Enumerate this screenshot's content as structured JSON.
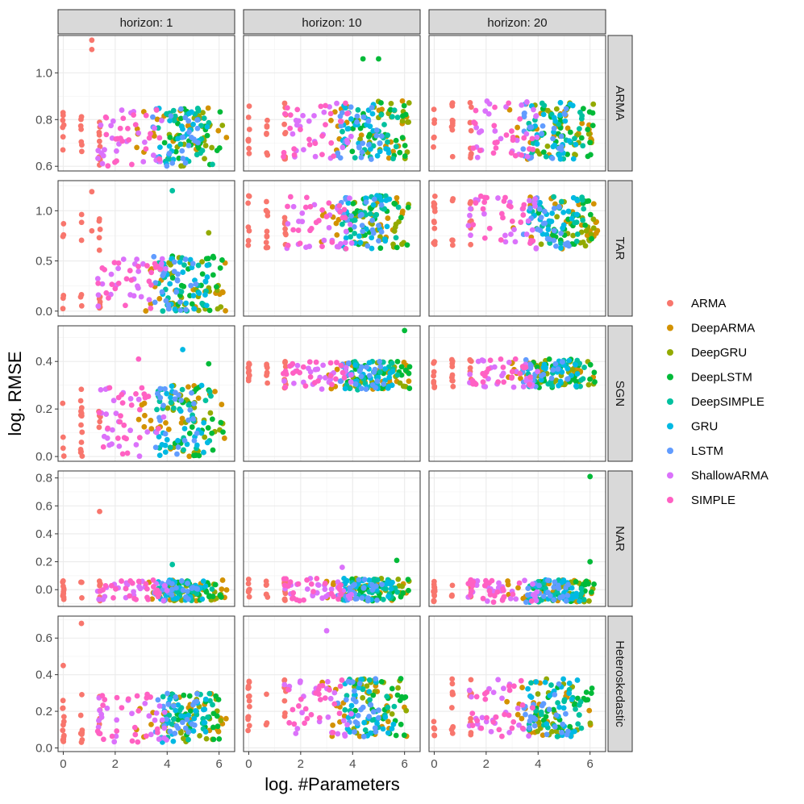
{
  "chart_data": {
    "type": "scatter",
    "xlabel": "log. #Parameters",
    "ylabel": "log. RMSE",
    "xlim": [
      -0.2,
      6.6
    ],
    "x_ticks": [
      0,
      2,
      4,
      6
    ],
    "facet_cols": [
      "horizon: 1",
      "horizon: 10",
      "horizon: 20"
    ],
    "facet_rows": [
      "ARMA",
      "TAR",
      "SGN",
      "NAR",
      "Heteroskedastic"
    ],
    "grid": true,
    "legend_position": "right",
    "series": [
      {
        "name": "ARMA",
        "color": "#F8766D"
      },
      {
        "name": "DeepARMA",
        "color": "#D39200"
      },
      {
        "name": "DeepGRU",
        "color": "#93AA00"
      },
      {
        "name": "DeepLSTM",
        "color": "#00BA38"
      },
      {
        "name": "DeepSIMPLE",
        "color": "#00C19F"
      },
      {
        "name": "GRU",
        "color": "#00B9E3"
      },
      {
        "name": "LSTM",
        "color": "#619CFF"
      },
      {
        "name": "ShallowARMA",
        "color": "#DB72FB"
      },
      {
        "name": "SIMPLE",
        "color": "#FF61C3"
      }
    ],
    "rows": [
      {
        "name": "ARMA",
        "ylim": [
          0.58,
          1.16
        ],
        "y_ticks": [
          0.6,
          0.8,
          1.0
        ],
        "y_tick_labels": [
          "0.6",
          "0.8",
          "1.0"
        ],
        "series_x": [
          [
            0,
            0.7,
            1.4
          ],
          [
            2.8,
            6.3
          ],
          [
            3.8,
            6.2
          ],
          [
            3.8,
            6.2
          ],
          [
            3.6,
            5.8
          ],
          [
            3.6,
            5.6
          ],
          [
            3.4,
            5.2
          ],
          [
            1.3,
            4.0
          ],
          [
            1.3,
            3.8
          ]
        ],
        "panels": [
          {
            "y_range": [
              0.6,
              0.85
            ],
            "n": 24,
            "outliers": [
              [
                1.1,
                1.14,
                0
              ],
              [
                1.1,
                1.1,
                0
              ]
            ]
          },
          {
            "y_range": [
              0.63,
              0.88
            ],
            "n": 24,
            "outliers": [
              [
                4.4,
                1.06,
                3
              ],
              [
                5.0,
                1.06,
                3
              ]
            ]
          },
          {
            "y_range": [
              0.63,
              0.88
            ],
            "n": 24,
            "outliers": []
          }
        ]
      },
      {
        "name": "TAR",
        "ylim": [
          -0.05,
          1.3
        ],
        "y_ticks": [
          0.0,
          0.5,
          1.0
        ],
        "y_tick_labels": [
          "0.0",
          "0.5",
          "1.0"
        ],
        "series_x": [
          [
            0,
            0.7,
            1.4
          ],
          [
            2.8,
            6.3
          ],
          [
            3.8,
            6.2
          ],
          [
            3.8,
            6.2
          ],
          [
            3.6,
            5.8
          ],
          [
            3.6,
            5.6
          ],
          [
            3.4,
            5.2
          ],
          [
            1.3,
            4.0
          ],
          [
            1.3,
            3.8
          ]
        ],
        "panels": [
          {
            "y_range": [
              0.0,
              0.55
            ],
            "n": 24,
            "outliers": [
              [
                1.1,
                1.19,
                0
              ],
              [
                1.1,
                0.8,
                0
              ],
              [
                4.2,
                1.2,
                4
              ],
              [
                5.6,
                0.78,
                2
              ]
            ]
          },
          {
            "y_range": [
              0.62,
              1.15
            ],
            "n": 24,
            "outliers": []
          },
          {
            "y_range": [
              0.62,
              1.15
            ],
            "n": 24,
            "outliers": []
          }
        ]
      },
      {
        "name": "SGN",
        "ylim": [
          -0.02,
          0.55
        ],
        "y_ticks": [
          0.0,
          0.2,
          0.4
        ],
        "y_tick_labels": [
          "0.0",
          "0.2",
          "0.4"
        ],
        "series_x": [
          [
            0,
            0.7,
            1.4
          ],
          [
            2.8,
            6.3
          ],
          [
            3.8,
            6.2
          ],
          [
            3.8,
            6.2
          ],
          [
            3.6,
            5.8
          ],
          [
            3.6,
            5.6
          ],
          [
            3.4,
            5.2
          ],
          [
            1.3,
            4.0
          ],
          [
            1.3,
            3.8
          ]
        ],
        "panels": [
          {
            "y_range": [
              0.0,
              0.3
            ],
            "n": 24,
            "outliers": [
              [
                4.6,
                0.45,
                5
              ],
              [
                2.9,
                0.41,
                8
              ],
              [
                5.6,
                0.39,
                3
              ]
            ]
          },
          {
            "y_range": [
              0.28,
              0.4
            ],
            "n": 24,
            "outliers": [
              [
                6.0,
                0.53,
                3
              ]
            ]
          },
          {
            "y_range": [
              0.29,
              0.41
            ],
            "n": 24,
            "outliers": []
          }
        ]
      },
      {
        "name": "NAR",
        "ylim": [
          -0.12,
          0.85
        ],
        "y_ticks": [
          0.0,
          0.2,
          0.4,
          0.6,
          0.8
        ],
        "y_tick_labels": [
          "0.0",
          "0.2",
          "0.4",
          "0.6",
          "0.8"
        ],
        "series_x": [
          [
            0,
            0.7,
            1.4
          ],
          [
            2.8,
            6.3
          ],
          [
            3.8,
            6.2
          ],
          [
            3.8,
            6.2
          ],
          [
            3.6,
            5.8
          ],
          [
            3.6,
            5.6
          ],
          [
            3.4,
            5.2
          ],
          [
            1.3,
            4.0
          ],
          [
            1.3,
            3.8
          ]
        ],
        "panels": [
          {
            "y_range": [
              -0.08,
              0.07
            ],
            "n": 24,
            "outliers": [
              [
                1.4,
                0.56,
                0
              ],
              [
                4.2,
                0.18,
                4
              ]
            ]
          },
          {
            "y_range": [
              -0.08,
              0.08
            ],
            "n": 24,
            "outliers": [
              [
                3.6,
                0.16,
                7
              ],
              [
                5.7,
                0.21,
                3
              ]
            ]
          },
          {
            "y_range": [
              -0.09,
              0.07
            ],
            "n": 24,
            "outliers": [
              [
                6.0,
                0.81,
                3
              ],
              [
                6.0,
                0.2,
                3
              ]
            ]
          }
        ]
      },
      {
        "name": "Heteroskedastic",
        "ylim": [
          -0.02,
          0.72
        ],
        "y_ticks": [
          0.0,
          0.2,
          0.4,
          0.6
        ],
        "y_tick_labels": [
          "0.0",
          "0.2",
          "0.4",
          "0.6"
        ],
        "series_x": [
          [
            0,
            0.7,
            1.4
          ],
          [
            2.8,
            6.3
          ],
          [
            3.8,
            6.2
          ],
          [
            3.8,
            6.2
          ],
          [
            3.6,
            5.8
          ],
          [
            3.6,
            5.6
          ],
          [
            3.4,
            5.2
          ],
          [
            1.3,
            4.0
          ],
          [
            1.3,
            3.8
          ]
        ],
        "panels": [
          {
            "y_range": [
              0.03,
              0.3
            ],
            "n": 24,
            "outliers": [
              [
                0.7,
                0.68,
                0
              ],
              [
                0.0,
                0.45,
                0
              ]
            ]
          },
          {
            "y_range": [
              0.06,
              0.38
            ],
            "n": 24,
            "outliers": [
              [
                3.0,
                0.64,
                7
              ]
            ]
          },
          {
            "y_range": [
              0.06,
              0.38
            ],
            "n": 24,
            "outliers": []
          }
        ]
      }
    ]
  }
}
